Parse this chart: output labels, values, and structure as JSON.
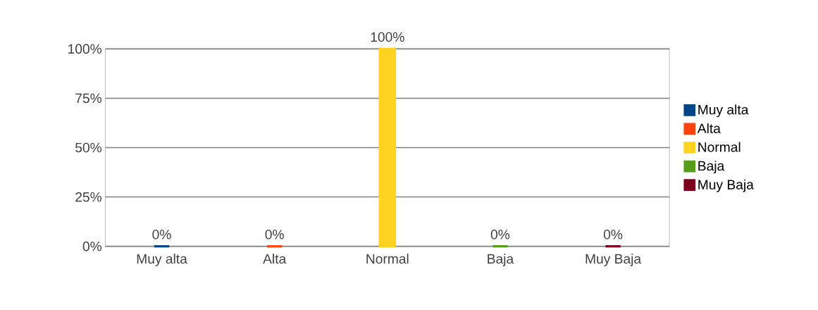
{
  "chart_data": {
    "type": "bar",
    "categories": [
      "Muy alta",
      "Alta",
      "Normal",
      "Baja",
      "Muy Baja"
    ],
    "series": [
      {
        "name": "Muy alta",
        "color": "#004586",
        "values": [
          0,
          null,
          null,
          null,
          null
        ],
        "value_labels": [
          "0%",
          null,
          null,
          null,
          null
        ]
      },
      {
        "name": "Alta",
        "color": "#ff420e",
        "values": [
          null,
          0,
          null,
          null,
          null
        ],
        "value_labels": [
          null,
          "0%",
          null,
          null,
          null
        ]
      },
      {
        "name": "Normal",
        "color": "#ffd320",
        "values": [
          null,
          null,
          100,
          null,
          null
        ],
        "value_labels": [
          null,
          null,
          "100%",
          null,
          null
        ]
      },
      {
        "name": "Baja",
        "color": "#579d1c",
        "values": [
          null,
          null,
          null,
          0,
          null
        ],
        "value_labels": [
          null,
          null,
          null,
          "0%",
          null
        ]
      },
      {
        "name": "Muy Baja",
        "color": "#7e0021",
        "values": [
          null,
          null,
          null,
          null,
          0
        ],
        "value_labels": [
          null,
          null,
          null,
          null,
          "0%"
        ]
      }
    ],
    "ylim": [
      0,
      100
    ],
    "yticks": [
      {
        "value": 0,
        "label": "0%"
      },
      {
        "value": 25,
        "label": "25%"
      },
      {
        "value": 50,
        "label": "50%"
      },
      {
        "value": 75,
        "label": "75%"
      },
      {
        "value": 100,
        "label": "100%"
      }
    ],
    "grid": "y",
    "legend": "right"
  }
}
